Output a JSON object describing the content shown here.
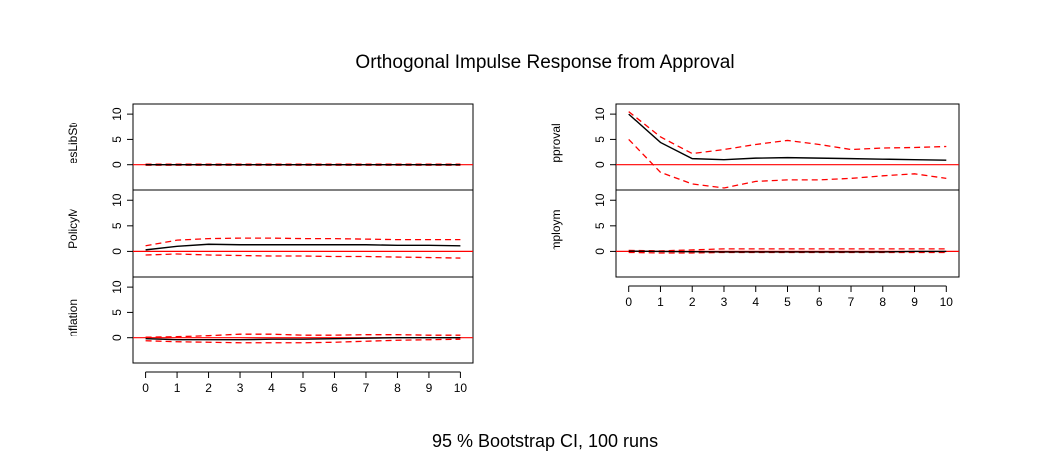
{
  "title": "Orthogonal Impulse Response from Approval",
  "caption": "95 % Bootstrap CI,  100 runs",
  "chart_data": {
    "type": "line",
    "x": [
      0,
      1,
      2,
      3,
      4,
      5,
      6,
      7,
      8,
      9,
      10
    ],
    "xticks": [
      "0",
      "1",
      "2",
      "3",
      "4",
      "5",
      "6",
      "7",
      "8",
      "9",
      "10"
    ],
    "yticks": [
      "0",
      "5",
      "10"
    ],
    "ylim": [
      -5,
      12
    ],
    "colors": {
      "response": "#000000",
      "ci": "#ff0000",
      "zero_line": "#ff0000"
    },
    "panels": [
      {
        "label": "PresLibStd",
        "response": [
          0,
          0,
          0,
          0,
          0,
          0,
          0,
          0,
          0,
          0,
          0
        ],
        "upper": [
          0.1,
          0.1,
          0.1,
          0.1,
          0.1,
          0.1,
          0.1,
          0.1,
          0.1,
          0.1,
          0.1
        ],
        "lower": [
          -0.1,
          -0.1,
          -0.1,
          -0.1,
          -0.1,
          -0.1,
          -0.1,
          -0.1,
          -0.1,
          -0.1,
          -0.1
        ]
      },
      {
        "label": "blicPolicyMo",
        "response": [
          0.3,
          1.0,
          1.4,
          1.3,
          1.3,
          1.3,
          1.3,
          1.3,
          1.2,
          1.2,
          1.1
        ],
        "upper": [
          1.1,
          2.2,
          2.5,
          2.6,
          2.6,
          2.5,
          2.5,
          2.4,
          2.3,
          2.3,
          2.3
        ],
        "lower": [
          -0.7,
          -0.5,
          -0.7,
          -0.8,
          -0.9,
          -0.9,
          -1.0,
          -1.0,
          -1.1,
          -1.2,
          -1.3
        ]
      },
      {
        "label": "Inflation",
        "response": [
          -0.2,
          -0.4,
          -0.4,
          -0.4,
          -0.3,
          -0.3,
          -0.2,
          -0.1,
          0,
          0,
          0
        ],
        "upper": [
          0.1,
          0.2,
          0.4,
          0.7,
          0.7,
          0.5,
          0.5,
          0.6,
          0.6,
          0.5,
          0.5
        ],
        "lower": [
          -0.6,
          -0.8,
          -0.9,
          -1.0,
          -1.0,
          -1.0,
          -0.9,
          -0.7,
          -0.5,
          -0.4,
          -0.3
        ]
      },
      {
        "label": "Approval",
        "response": [
          10,
          4.4,
          1.2,
          1.0,
          1.3,
          1.4,
          1.3,
          1.2,
          1.1,
          1.0,
          0.9
        ],
        "upper": [
          10.5,
          5.5,
          2.2,
          3.0,
          4.0,
          4.8,
          4.0,
          3.0,
          3.3,
          3.4,
          3.6
        ],
        "lower": [
          5,
          -1.5,
          -3.8,
          -4.6,
          -3.3,
          -3.0,
          -3.0,
          -2.7,
          -2.2,
          -1.8,
          -2.7
        ]
      },
      {
        "label": "Inemploymer",
        "response": [
          0.05,
          0.0,
          -0.05,
          -0.1,
          -0.1,
          -0.1,
          -0.1,
          -0.1,
          -0.1,
          0,
          0
        ],
        "upper": [
          0.2,
          0.1,
          0.3,
          0.5,
          0.5,
          0.5,
          0.5,
          0.5,
          0.5,
          0.5,
          0.5
        ],
        "lower": [
          -0.2,
          -0.3,
          -0.3,
          -0.2,
          -0.2,
          -0.2,
          -0.2,
          -0.2,
          -0.2,
          -0.2,
          -0.2
        ]
      }
    ]
  }
}
